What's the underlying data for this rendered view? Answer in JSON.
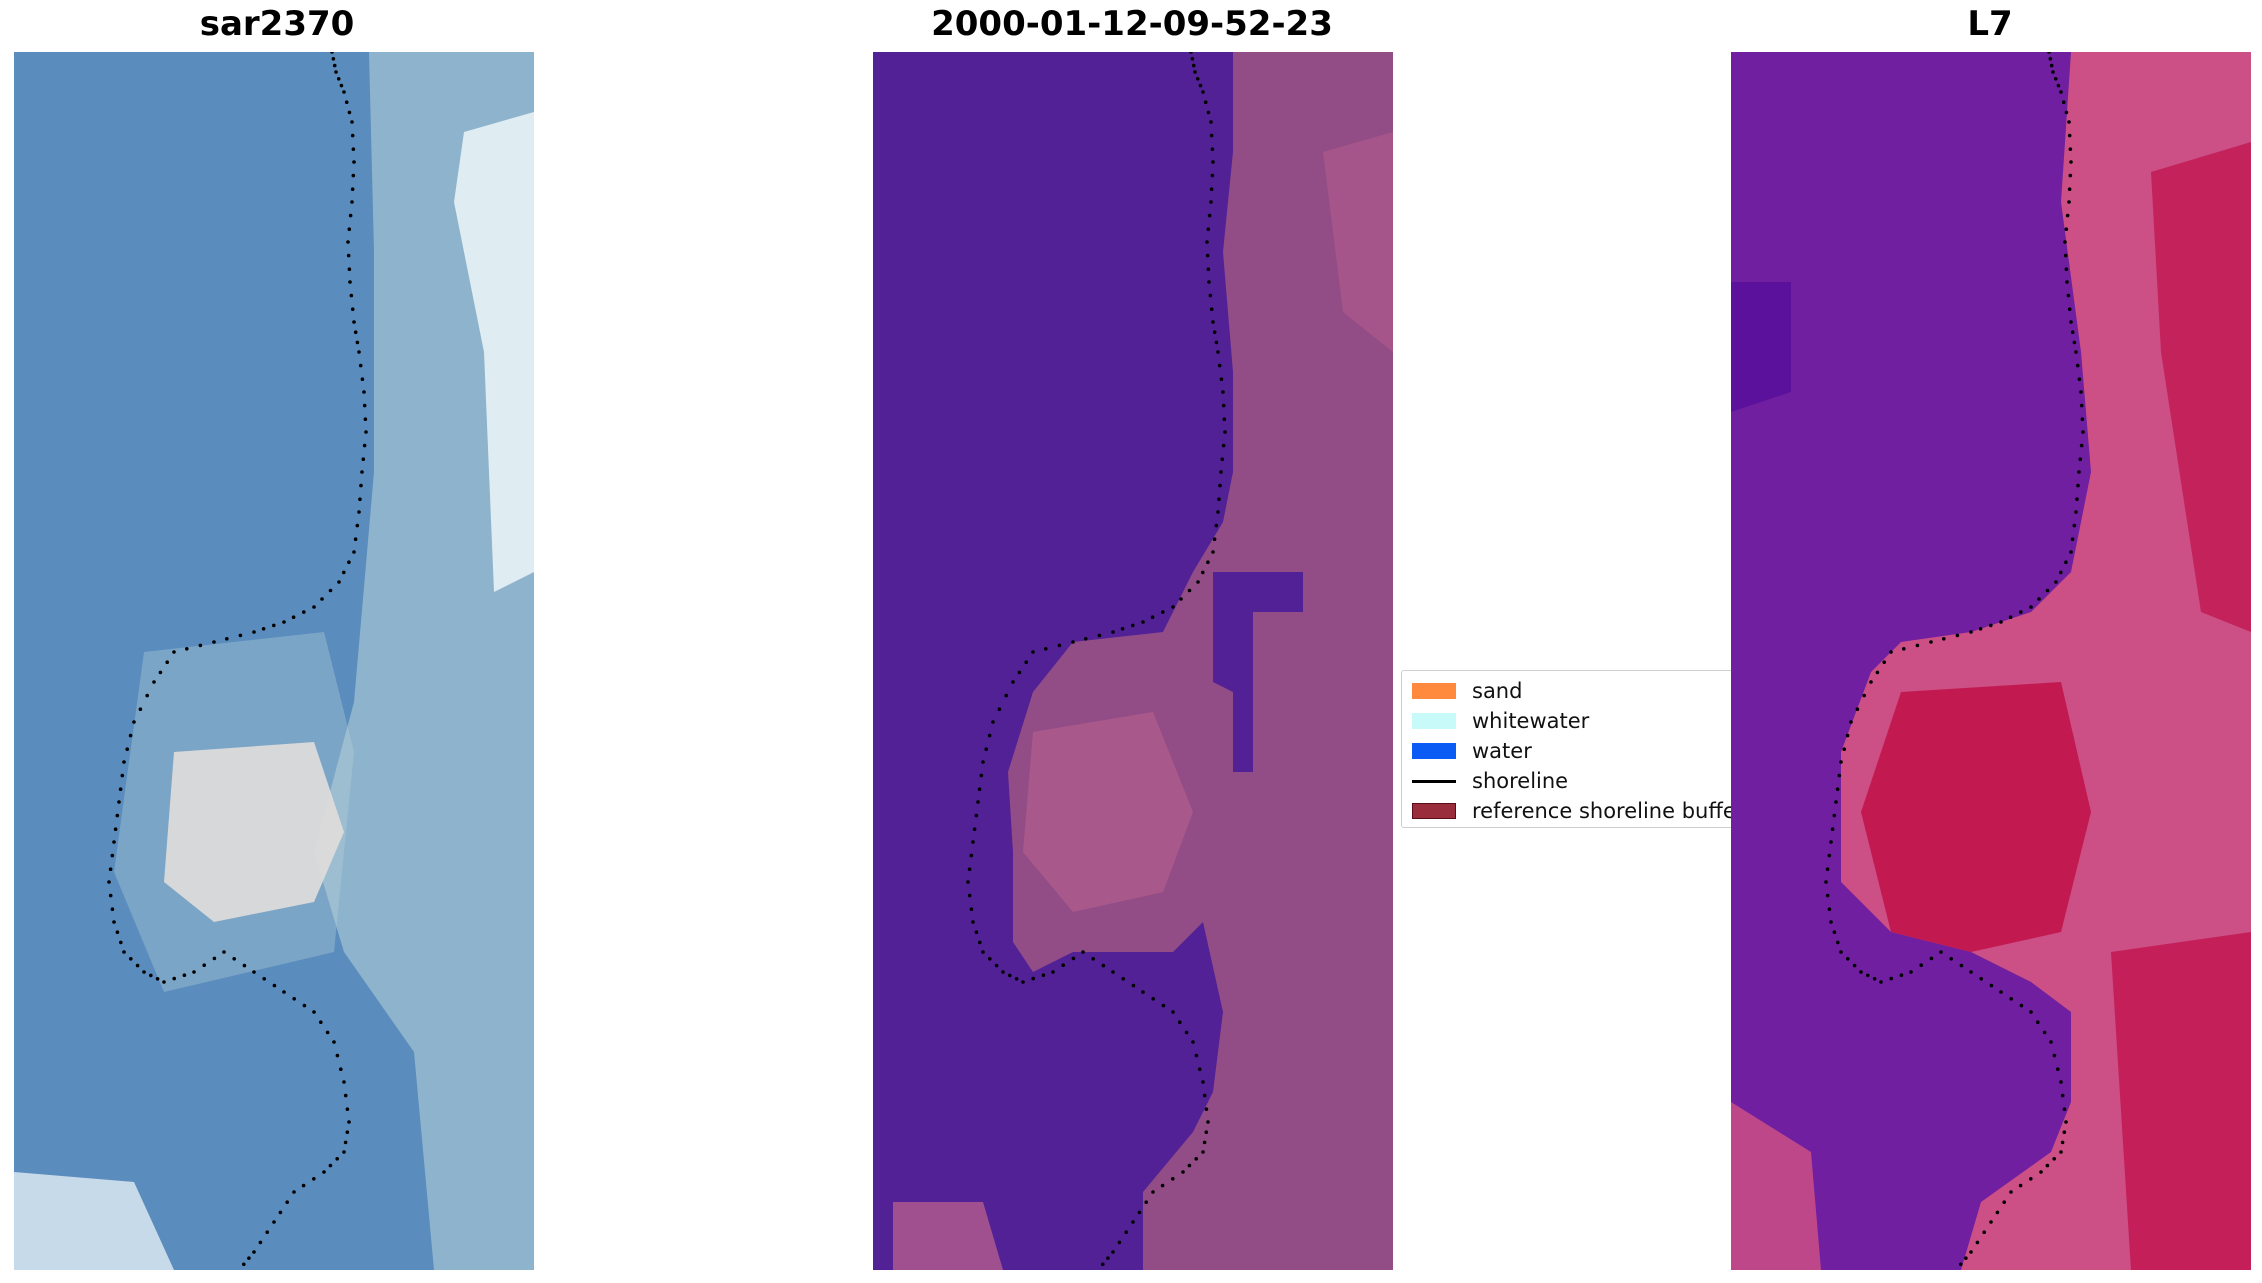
{
  "panels": [
    {
      "title": "sar2370",
      "kind": "rgb",
      "colors": {
        "base": "#5a8cbd",
        "light": "#b9d3d9",
        "bright": "#f4fbfd",
        "highlight": "#f5e2db"
      }
    },
    {
      "title": "2000-01-12-09-52-23",
      "kind": "classified",
      "colors": {
        "water": "#522196",
        "land": "#924d86",
        "land_light": "#b45d8d"
      }
    },
    {
      "title": "L7",
      "kind": "index",
      "colors": {
        "water": "#6f1fa0",
        "water_dark": "#560e9b",
        "land": "#cc4f86",
        "land_strong": "#c10f48"
      }
    }
  ],
  "legend": {
    "items": [
      {
        "label": "sand",
        "color": "#ff8a3d",
        "type": "patch"
      },
      {
        "label": "whitewater",
        "color": "#c8fafa",
        "type": "patch"
      },
      {
        "label": "water",
        "color": "#0b5cf5",
        "type": "patch"
      },
      {
        "label": "shoreline",
        "color": "#000000",
        "type": "line"
      },
      {
        "label": "reference shoreline buffer",
        "color": "#9a2d3b",
        "type": "patch"
      }
    ]
  },
  "icons": {
    "shoreline_marker": "black-dot"
  }
}
